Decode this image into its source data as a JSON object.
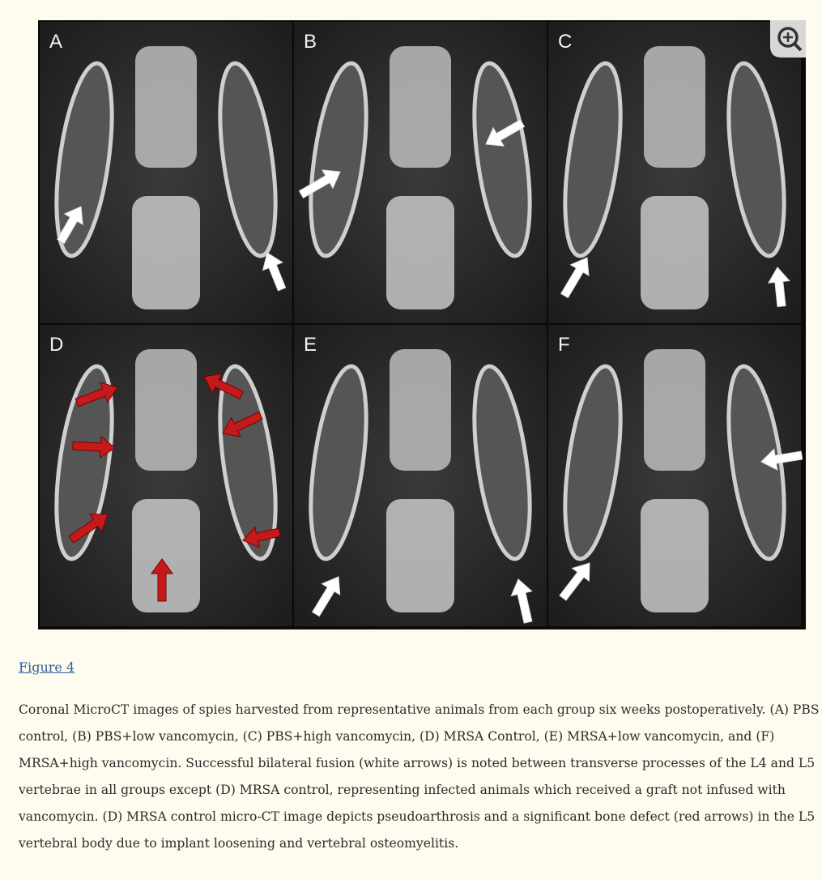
{
  "figure": {
    "panel_labels": [
      "A",
      "B",
      "C",
      "D",
      "E",
      "F"
    ],
    "link": "Figure 4",
    "caption": "Coronal MicroCT images of spies harvested from representative animals from each group six weeks postoperatively. (A) PBS control, (B) PBS+low vancomycin, (C) PBS+high vancomycin, (D) MRSA Control, (E) MRSA+low vancomycin, and (F) MRSA+high vancomycin. Successful bilateral fusion (white arrows) is noted between transverse processes of the L4 and L5 vertebrae in all groups except (D) MRSA control, representing infected animals which received a graft not infused with vancomycin. (D) MRSA control micro-CT image depicts pseudoarthrosis and a significant bone defect (red arrows) in the L5 vertebral body due to implant loosening and vertebral osteomyelitis."
  }
}
